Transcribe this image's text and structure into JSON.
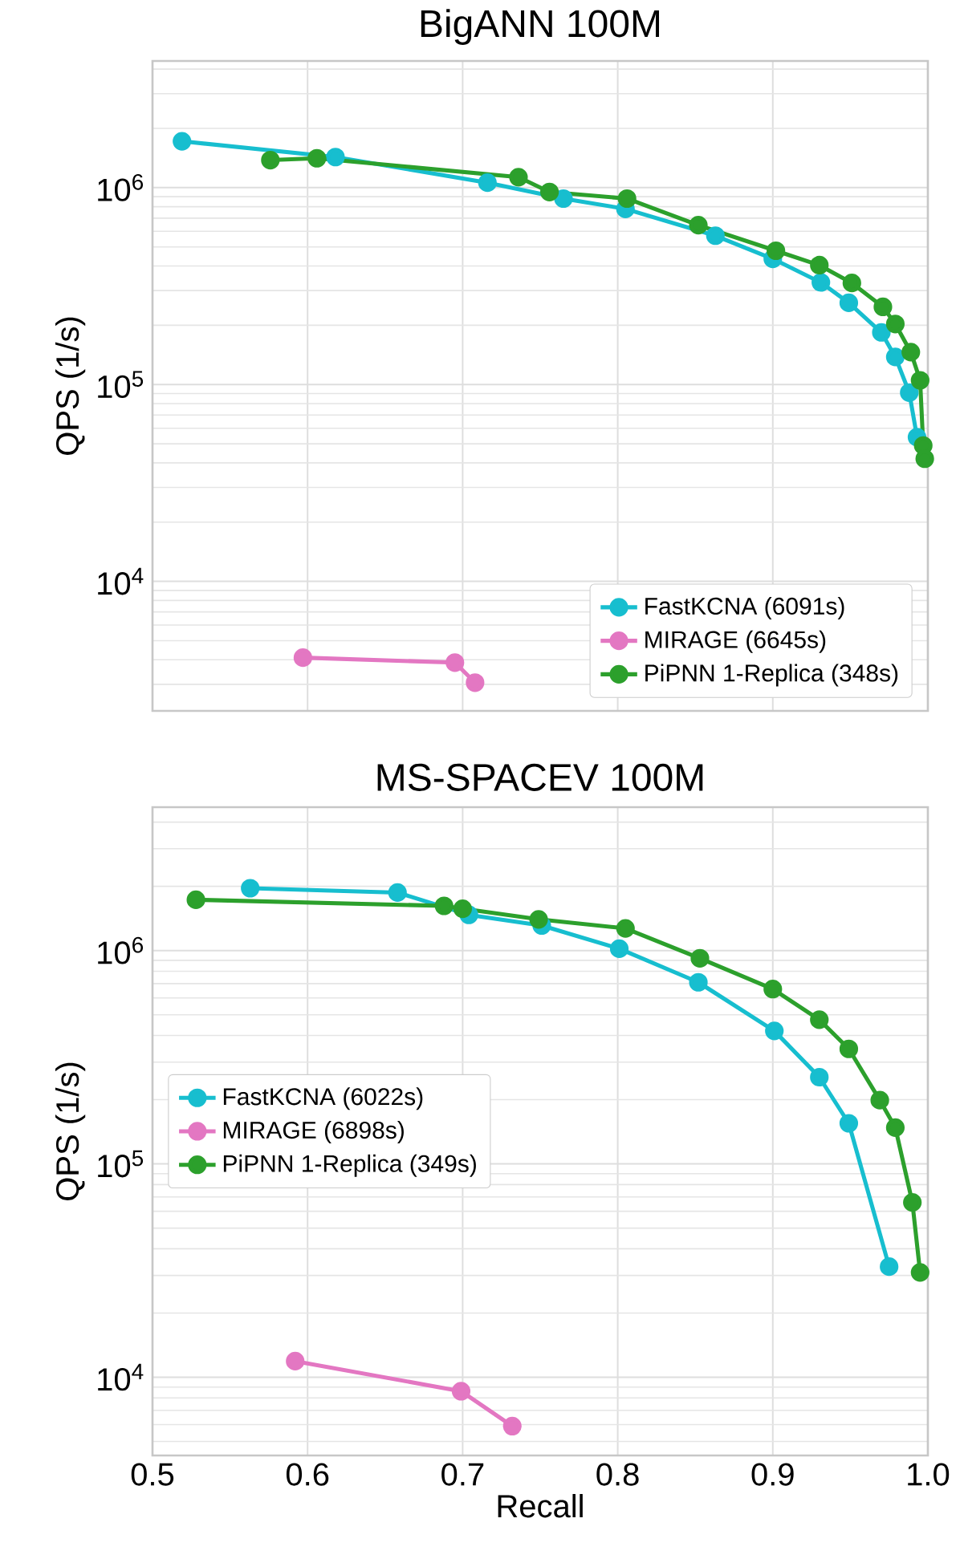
{
  "chart_data": [
    {
      "type": "line",
      "title": "BigANN 100M",
      "ylabel": "QPS (1/s)",
      "log": "y",
      "grid": true,
      "legend": "bottom right",
      "marker": "circle",
      "line_style": "solid",
      "tick_labels": "y",
      "xlim": [
        0.5,
        1.0
      ],
      "xticks": [
        0.5,
        0.6,
        0.7,
        0.8,
        0.9,
        1.0
      ],
      "ylim": [
        2200,
        4400000
      ],
      "yticks": [
        {
          "value": 10000,
          "label": "10$^{4}$"
        },
        {
          "value": 100000,
          "label": "10$^{5}$"
        },
        {
          "value": 1000000,
          "label": "10$^{6}$"
        }
      ],
      "series": [
        {
          "name": "FastKCNA (6091s)",
          "color": "#17becf",
          "x": [
            0.519,
            0.618,
            0.716,
            0.765,
            0.805,
            0.863,
            0.9,
            0.931,
            0.949,
            0.97,
            0.979,
            0.988,
            0.993
          ],
          "values": [
            1720000,
            1430000,
            1060000,
            880000,
            780000,
            570000,
            435000,
            330000,
            260000,
            184000,
            138000,
            91000,
            54000
          ]
        },
        {
          "name": "MIRAGE (6645s)",
          "color": "#e377c2",
          "x": [
            0.597,
            0.695,
            0.708
          ],
          "values": [
            4100,
            3870,
            3060
          ]
        },
        {
          "name": "PiPNN 1-Replica (348s)",
          "color": "#2ca02c",
          "x": [
            0.576,
            0.606,
            0.736,
            0.756,
            0.806,
            0.852,
            0.902,
            0.93,
            0.951,
            0.971,
            0.979,
            0.989,
            0.995,
            0.997,
            0.998
          ],
          "values": [
            1380000,
            1410000,
            1130000,
            950000,
            880000,
            645000,
            478000,
            404000,
            328000,
            248000,
            203000,
            146000,
            105000,
            49000,
            42000
          ]
        }
      ]
    },
    {
      "type": "line",
      "title": "MS-SPACEV 100M",
      "xlabel": "Recall",
      "ylabel": "QPS (1/s)",
      "log": "y",
      "grid": true,
      "legend": "left",
      "marker": "circle",
      "line_style": "solid",
      "xlim": [
        0.5,
        1.0
      ],
      "xticks": [
        0.5,
        0.6,
        0.7,
        0.8,
        0.9,
        {
          "value": 1.0,
          "label": "1.0"
        }
      ],
      "ylim": [
        4300,
        4700000
      ],
      "yticks": [
        {
          "value": 10000,
          "label": "10$^{4}$"
        },
        {
          "value": 100000,
          "label": "10$^{5}$"
        },
        {
          "value": 1000000,
          "label": "10$^{6}$"
        }
      ],
      "series": [
        {
          "name": "FastKCNA (6022s)",
          "color": "#17becf",
          "x": [
            0.563,
            0.658,
            0.704,
            0.751,
            0.801,
            0.852,
            0.901,
            0.93,
            0.949,
            0.975
          ],
          "values": [
            1960000,
            1870000,
            1470000,
            1310000,
            1020000,
            710000,
            420000,
            255000,
            155000,
            33000
          ]
        },
        {
          "name": "MIRAGE (6898s)",
          "color": "#e377c2",
          "x": [
            0.592,
            0.699,
            0.732
          ],
          "values": [
            11900,
            8600,
            5900
          ]
        },
        {
          "name": "PiPNN 1-Replica (349s)",
          "color": "#2ca02c",
          "x": [
            0.528,
            0.688,
            0.7,
            0.749,
            0.805,
            0.853,
            0.9,
            0.93,
            0.949,
            0.969,
            0.979,
            0.99,
            0.995
          ],
          "values": [
            1730000,
            1620000,
            1570000,
            1400000,
            1270000,
            920000,
            660000,
            474000,
            346000,
            199000,
            148000,
            66000,
            31000
          ]
        }
      ]
    }
  ]
}
